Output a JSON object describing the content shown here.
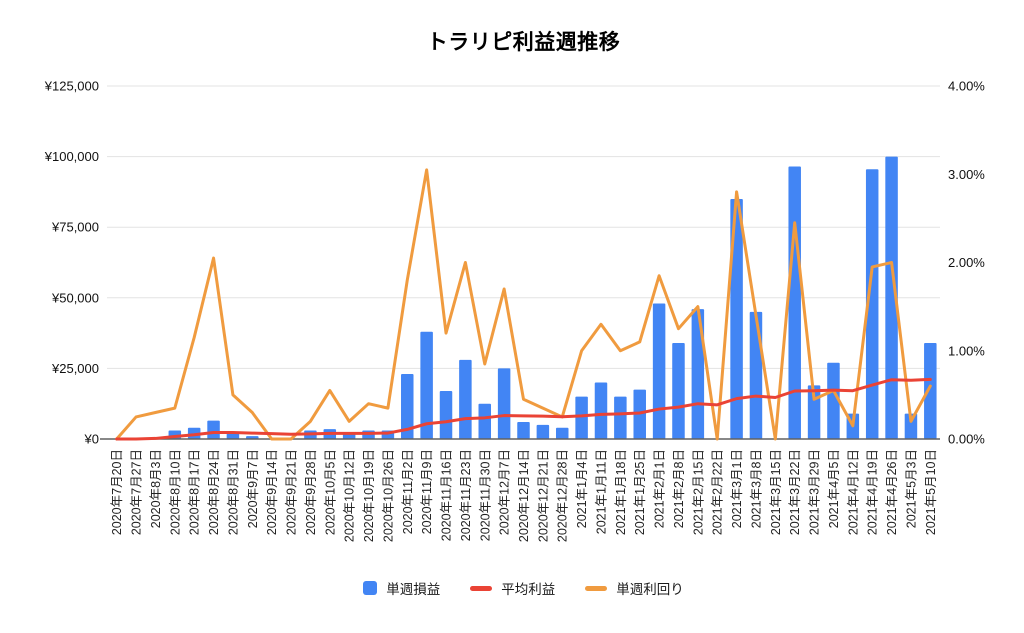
{
  "title": "トラリピ利益週推移",
  "legend": [
    {
      "label": "単週損益",
      "swatch": "square",
      "color": "#4285F4"
    },
    {
      "label": "平均利益",
      "swatch": "line",
      "color": "#EA4335"
    },
    {
      "label": "単週利回り",
      "swatch": "line",
      "color": "#F09B3F"
    }
  ],
  "chart_data": {
    "type": "bar",
    "subtype": "combo-bar-with-two-lines",
    "title": "トラリピ利益週推移",
    "grid": true,
    "legend_position": "bottom",
    "categories": [
      "2020年7月20日",
      "2020年7月27日",
      "2020年8月3日",
      "2020年8月10日",
      "2020年8月17日",
      "2020年8月24日",
      "2020年8月31日",
      "2020年9月7日",
      "2020年9月14日",
      "2020年9月21日",
      "2020年9月28日",
      "2020年10月5日",
      "2020年10月12日",
      "2020年10月19日",
      "2020年10月26日",
      "2020年11月2日",
      "2020年11月9日",
      "2020年11月16日",
      "2020年11月23日",
      "2020年11月30日",
      "2020年12月7日",
      "2020年12月14日",
      "2020年12月21日",
      "2020年12月28日",
      "2021年1月4日",
      "2021年1月11日",
      "2021年1月18日",
      "2021年1月25日",
      "2021年2月1日",
      "2021年2月8日",
      "2021年2月15日",
      "2021年2月22日",
      "2021年3月1日",
      "2021年3月8日",
      "2021年3月15日",
      "2021年3月22日",
      "2021年3月29日",
      "2021年4月5日",
      "2021年4月12日",
      "2021年4月19日",
      "2021年4月26日",
      "2021年5月3日",
      "2021年5月10日"
    ],
    "series": [
      {
        "name": "単週損益",
        "type": "bar",
        "axis": "left",
        "color": "#4285F4",
        "values": [
          0,
          0,
          500,
          3000,
          4000,
          6500,
          2000,
          1000,
          0,
          0,
          3000,
          3500,
          2000,
          3000,
          3000,
          23000,
          38000,
          17000,
          28000,
          12500,
          25000,
          6000,
          5000,
          4000,
          15000,
          20000,
          15000,
          17500,
          48000,
          34000,
          46000,
          0,
          85000,
          45000,
          0,
          96500,
          19000,
          27000,
          9000,
          95500,
          100000,
          9000,
          34000
        ]
      },
      {
        "name": "平均利益",
        "type": "line",
        "axis": "left",
        "color": "#EA4335",
        "values": [
          0,
          0,
          200,
          900,
          1500,
          2300,
          2300,
          2100,
          1900,
          1700,
          1800,
          2000,
          2000,
          2000,
          2100,
          3400,
          5400,
          6100,
          7200,
          7500,
          8300,
          8200,
          8100,
          7900,
          8200,
          8700,
          8900,
          9200,
          10600,
          11300,
          12500,
          12100,
          14300,
          15200,
          14700,
          17000,
          17100,
          17300,
          17100,
          19100,
          21000,
          20800,
          21100
        ]
      },
      {
        "name": "単週利回り",
        "type": "line",
        "axis": "right",
        "color": "#F09B3F",
        "values_percent": [
          0,
          0.25,
          0.3,
          0.35,
          1.15,
          2.05,
          0.5,
          0.3,
          0,
          0,
          0.2,
          0.55,
          0.2,
          0.4,
          0.35,
          1.8,
          3.05,
          1.2,
          2.0,
          0.85,
          1.7,
          0.45,
          0.35,
          0.25,
          1.0,
          1.3,
          1.0,
          1.1,
          1.85,
          1.25,
          1.5,
          0,
          2.8,
          1.4,
          0,
          2.45,
          0.45,
          0.55,
          0.15,
          1.95,
          2.0,
          0.2,
          0.6
        ]
      }
    ],
    "left_axis": {
      "min": 0,
      "max": 125000,
      "ticks": [
        "¥0",
        "¥25,000",
        "¥50,000",
        "¥75,000",
        "¥100,000",
        "¥125,000"
      ]
    },
    "right_axis": {
      "min": 0,
      "max": 4,
      "ticks": [
        "0.00%",
        "1.00%",
        "2.00%",
        "3.00%",
        "4.00%"
      ]
    }
  },
  "colors": {
    "bar": "#4285F4",
    "average_line": "#EA4335",
    "yield_line": "#F09B3F",
    "gridline": "#e3e3e3",
    "axis_line": "#616161",
    "tick_label": "#111111"
  }
}
